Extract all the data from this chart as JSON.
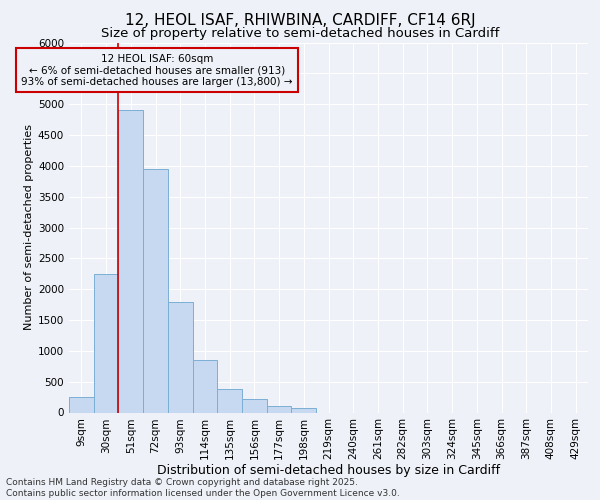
{
  "title1": "12, HEOL ISAF, RHIWBINA, CARDIFF, CF14 6RJ",
  "title2": "Size of property relative to semi-detached houses in Cardiff",
  "xlabel": "Distribution of semi-detached houses by size in Cardiff",
  "ylabel": "Number of semi-detached properties",
  "categories": [
    "9sqm",
    "30sqm",
    "51sqm",
    "72sqm",
    "93sqm",
    "114sqm",
    "135sqm",
    "156sqm",
    "177sqm",
    "198sqm",
    "219sqm",
    "240sqm",
    "261sqm",
    "282sqm",
    "303sqm",
    "324sqm",
    "345sqm",
    "366sqm",
    "387sqm",
    "408sqm",
    "429sqm"
  ],
  "values": [
    250,
    2250,
    4900,
    3950,
    1800,
    850,
    375,
    225,
    100,
    75,
    0,
    0,
    0,
    0,
    0,
    0,
    0,
    0,
    0,
    0,
    0
  ],
  "bar_color": "#c6d9f0",
  "bar_edge_color": "#7bafd4",
  "vline_color": "#cc0000",
  "vline_x_index": 2,
  "annotation_title": "12 HEOL ISAF: 60sqm",
  "annotation_line1": "← 6% of semi-detached houses are smaller (913)",
  "annotation_line2": "93% of semi-detached houses are larger (13,800) →",
  "annotation_box_edgecolor": "#cc0000",
  "ylim": [
    0,
    6000
  ],
  "yticks": [
    0,
    500,
    1000,
    1500,
    2000,
    2500,
    3000,
    3500,
    4000,
    4500,
    5000,
    5500,
    6000
  ],
  "footer1": "Contains HM Land Registry data © Crown copyright and database right 2025.",
  "footer2": "Contains public sector information licensed under the Open Government Licence v3.0.",
  "bg_color": "#eef2f8",
  "grid_color": "#ffffff",
  "title1_fontsize": 11,
  "title2_fontsize": 9.5,
  "xlabel_fontsize": 9,
  "ylabel_fontsize": 8,
  "tick_fontsize": 7.5,
  "annotation_fontsize": 7.5,
  "footer_fontsize": 6.5
}
